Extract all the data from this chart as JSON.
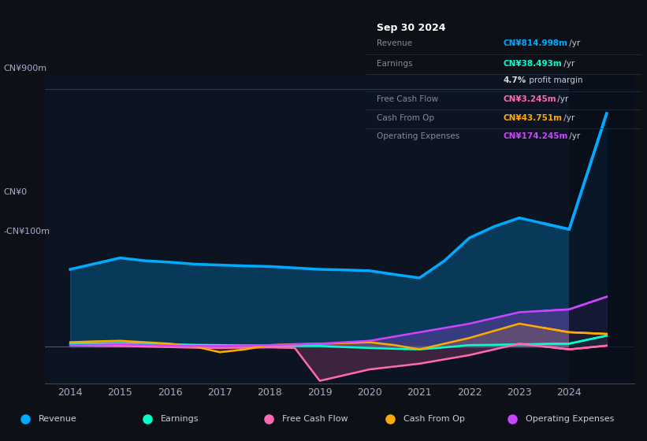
{
  "background_color": "#0d1117",
  "plot_bg_color": "#0d1421",
  "colors": {
    "revenue": "#00aaff",
    "earnings": "#00ffcc",
    "free_cash_flow": "#ff69b4",
    "cash_from_op": "#ffaa00",
    "operating_expenses": "#cc44ff"
  },
  "legend_labels": [
    "Revenue",
    "Earnings",
    "Free Cash Flow",
    "Cash From Op",
    "Operating Expenses"
  ],
  "info_box": {
    "title": "Sep 30 2024",
    "rows": [
      {
        "label": "Revenue",
        "value": "CN¥814.998m",
        "suffix": " /yr",
        "color": "#00aaff"
      },
      {
        "label": "Earnings",
        "value": "CN¥38.493m",
        "suffix": " /yr",
        "color": "#00ffcc"
      },
      {
        "label": "",
        "value": "4.7%",
        "suffix": " profit margin",
        "color": "#dddddd"
      },
      {
        "label": "Free Cash Flow",
        "value": "CN¥3.245m",
        "suffix": " /yr",
        "color": "#ff69b4"
      },
      {
        "label": "Cash From Op",
        "value": "CN¥43.751m",
        "suffix": " /yr",
        "color": "#ffaa00"
      },
      {
        "label": "Operating Expenses",
        "value": "CN¥174.245m",
        "suffix": " /yr",
        "color": "#cc44ff"
      }
    ]
  },
  "x_years": [
    2014,
    2014.5,
    2015,
    2015.5,
    2016,
    2016.5,
    2017,
    2017.5,
    2018,
    2018.5,
    2019,
    2019.5,
    2020,
    2020.5,
    2021,
    2021.5,
    2022,
    2022.5,
    2023,
    2023.5,
    2024,
    2024.75
  ],
  "revenue": [
    270,
    290,
    310,
    300,
    295,
    288,
    285,
    282,
    280,
    275,
    270,
    268,
    265,
    252,
    240,
    300,
    380,
    420,
    450,
    430,
    410,
    815
  ],
  "earnings": [
    10,
    11,
    12,
    10,
    8,
    6,
    5,
    4,
    3,
    2,
    2,
    -2,
    -5,
    -8,
    -10,
    -3,
    5,
    6,
    8,
    9,
    10,
    38
  ],
  "free_cash_flow": [
    5,
    3,
    2,
    0,
    -2,
    -4,
    -5,
    -4,
    -3,
    -5,
    -120,
    -100,
    -80,
    -70,
    -60,
    -45,
    -30,
    -10,
    10,
    0,
    -10,
    3
  ],
  "cash_from_op": [
    15,
    18,
    20,
    15,
    10,
    0,
    -20,
    -10,
    5,
    8,
    10,
    12,
    15,
    5,
    -10,
    10,
    30,
    55,
    80,
    65,
    50,
    44
  ],
  "operating_expenses": [
    5,
    6,
    8,
    6,
    3,
    2,
    2,
    3,
    5,
    7,
    10,
    15,
    20,
    35,
    50,
    65,
    80,
    100,
    120,
    125,
    130,
    174
  ],
  "xlim": [
    2013.5,
    2025.3
  ],
  "ylim_main": [
    -130,
    950
  ],
  "xtick_years": [
    2014,
    2015,
    2016,
    2017,
    2018,
    2019,
    2020,
    2021,
    2022,
    2023,
    2024
  ]
}
